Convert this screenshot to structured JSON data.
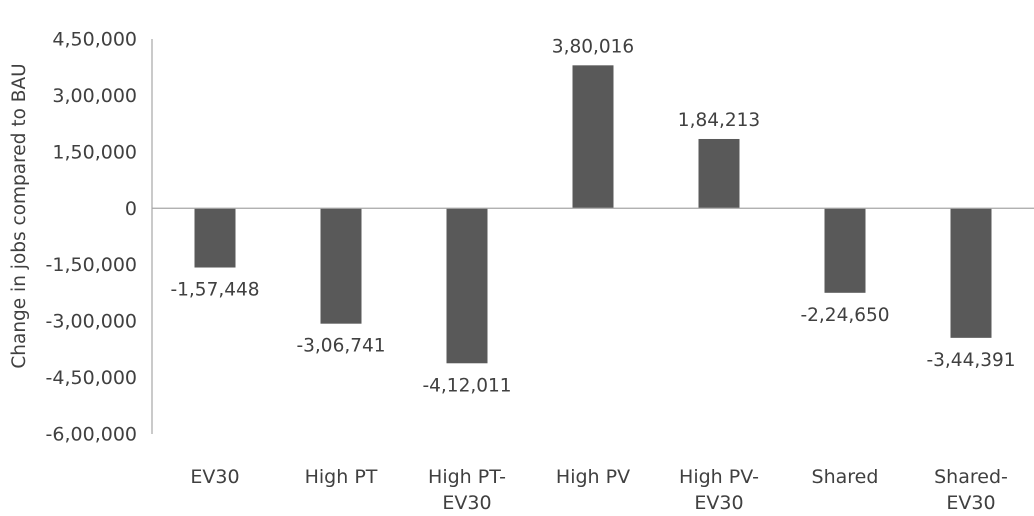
{
  "chart_data": {
    "type": "bar",
    "title": "",
    "xlabel": "",
    "ylabel": "Change in jobs compared to BAU",
    "ylim": [
      -600000,
      450000
    ],
    "yticks": [
      450000,
      300000,
      150000,
      0,
      -150000,
      -300000,
      -450000,
      -600000
    ],
    "ytick_labels": [
      "4,50,000",
      "3,00,000",
      "1,50,000",
      "0",
      "-1,50,000",
      "-3,00,000",
      "-4,50,000",
      "-6,00,000"
    ],
    "grid": false,
    "categories": [
      [
        "EV30"
      ],
      [
        "High PT"
      ],
      [
        "High PT-",
        "EV30"
      ],
      [
        "High PV"
      ],
      [
        "High PV-",
        "EV30"
      ],
      [
        "Shared"
      ],
      [
        "Shared-",
        "EV30"
      ]
    ],
    "values": [
      -157448,
      -306741,
      -412011,
      380016,
      184213,
      -224650,
      -344391
    ],
    "value_labels": [
      "-1,57,448",
      "-3,06,741",
      "-4,12,011",
      "3,80,016",
      "1,84,213",
      "-2,24,650",
      "-3,44,391"
    ],
    "bar_color": "#595959",
    "axis_color": "#a6a6a6",
    "text_color": "#404040"
  }
}
